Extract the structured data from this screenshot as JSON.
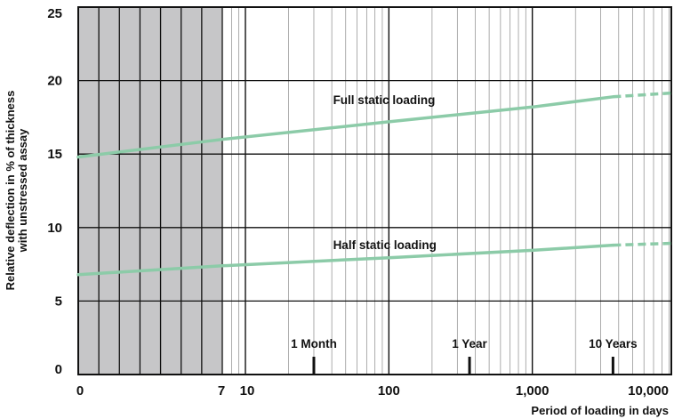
{
  "chart_data": {
    "type": "line",
    "title": "",
    "xlabel": "Period of loading in days",
    "ylabel_lines": [
      "Relative deflection in % of thickness",
      "with unstressed assay"
    ],
    "x_scale": "hybrid: linear 0–7 days, log10 from 7 to 16,000 days",
    "xlim": [
      0,
      16000
    ],
    "ylim": [
      0,
      25
    ],
    "y_ticks": [
      "0",
      "5",
      "10",
      "15",
      "20",
      "25"
    ],
    "x_tick_labels": [
      {
        "x": 0,
        "label": "0"
      },
      {
        "x": 7,
        "label": "7"
      },
      {
        "x": 10,
        "label": "10"
      },
      {
        "x": 100,
        "label": "100"
      },
      {
        "x": 1000,
        "label": "1,000"
      },
      {
        "x": 10000,
        "label": "10,000"
      }
    ],
    "shaded_region": {
      "x_from": 0,
      "x_to": 7,
      "color": "#c6c6c8"
    },
    "grid": true,
    "markers": [
      {
        "x": 30,
        "label": "1 Month"
      },
      {
        "x": 365,
        "label": "1 Year"
      },
      {
        "x": 3650,
        "label": "10 Years"
      }
    ],
    "series": [
      {
        "name": "Full static loading",
        "color": "#8ccba8",
        "points": [
          {
            "x": 0,
            "y": 14.8
          },
          {
            "x": 7,
            "y": 16.0
          },
          {
            "x": 100,
            "y": 17.2
          },
          {
            "x": 1000,
            "y": 18.2
          },
          {
            "x": 3650,
            "y": 18.9
          }
        ],
        "dashed_points": [
          {
            "x": 3650,
            "y": 18.9
          },
          {
            "x": 16000,
            "y": 19.3
          }
        ]
      },
      {
        "name": "Half static loading",
        "color": "#8ccba8",
        "points": [
          {
            "x": 0,
            "y": 6.8
          },
          {
            "x": 7,
            "y": 7.4
          },
          {
            "x": 100,
            "y": 7.95
          },
          {
            "x": 1000,
            "y": 8.45
          },
          {
            "x": 3650,
            "y": 8.8
          }
        ],
        "dashed_points": [
          {
            "x": 3650,
            "y": 8.8
          },
          {
            "x": 16000,
            "y": 9.0
          }
        ]
      }
    ]
  }
}
